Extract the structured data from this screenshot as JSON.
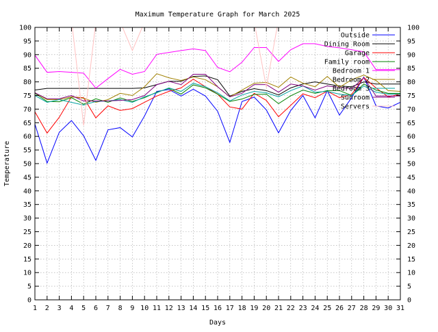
{
  "chart_data": {
    "type": "line",
    "title": "Maximum Temperature Graph for March 2025",
    "xlabel": "Days",
    "ylabel": "Temperature",
    "xlim": [
      1,
      31
    ],
    "ylim": [
      0,
      100
    ],
    "x_ticks": [
      1,
      2,
      3,
      4,
      5,
      6,
      7,
      8,
      9,
      10,
      11,
      12,
      13,
      14,
      15,
      16,
      17,
      18,
      19,
      20,
      21,
      22,
      23,
      24,
      25,
      26,
      27,
      28,
      29,
      30,
      31
    ],
    "y_ticks": [
      0,
      5,
      10,
      15,
      20,
      25,
      30,
      35,
      40,
      45,
      50,
      55,
      60,
      65,
      70,
      75,
      80,
      85,
      90,
      95,
      100
    ],
    "grid": true,
    "legend_position": "top-right",
    "x": [
      1,
      2,
      3,
      4,
      5,
      6,
      7,
      8,
      9,
      10,
      11,
      12,
      13,
      14,
      15,
      16,
      17,
      18,
      19,
      20,
      21,
      22,
      23,
      24,
      25,
      26,
      27,
      28,
      29,
      30,
      31
    ],
    "series": [
      {
        "name": "Outside",
        "color": "#0000ff",
        "values": [
          64.5,
          50.2,
          61.5,
          65.8,
          60.2,
          51.2,
          62.4,
          63.2,
          59.8,
          67.5,
          76.5,
          77.2,
          74.8,
          77.3,
          74.8,
          69.2,
          57.8,
          72.8,
          74.4,
          69.7,
          61.3,
          69.5,
          75.0,
          66.8,
          76.8,
          67.8,
          74.2,
          81.8,
          71.2,
          70.4,
          72.5
        ]
      },
      {
        "name": "Dining Room",
        "color": "#000000",
        "values": [
          77.0,
          77.6,
          77.6,
          77.6,
          77.6,
          77.6,
          77.6,
          77.6,
          77.6,
          77.8,
          79.0,
          80.2,
          80.2,
          82.0,
          82.2,
          80.8,
          74.8,
          76.5,
          77.5,
          76.8,
          75.2,
          77.8,
          79.2,
          80.0,
          79.2,
          78.5,
          78.2,
          80.0,
          79.2,
          79.2,
          79.2
        ]
      },
      {
        "name": "Garage",
        "color": "#ff0000",
        "values": [
          69.0,
          61.2,
          67.0,
          74.5,
          74.2,
          66.8,
          71.2,
          69.5,
          70.2,
          72.5,
          74.8,
          76.5,
          77.8,
          81.0,
          78.2,
          75.5,
          70.8,
          70.0,
          75.8,
          73.2,
          67.2,
          71.4,
          75.6,
          74.2,
          76.6,
          74.2,
          75.4,
          81.6,
          77.8,
          74.5,
          75.5
        ]
      },
      {
        "name": "Family room",
        "color": "#008000",
        "values": [
          75.8,
          72.8,
          72.7,
          74.2,
          71.8,
          73.8,
          72.5,
          74.1,
          72.8,
          74.2,
          76.2,
          77.6,
          75.5,
          78.9,
          77.8,
          75.5,
          72.8,
          73.7,
          75.4,
          75.5,
          72.0,
          74.9,
          77.0,
          75.8,
          76.8,
          76.8,
          75.0,
          79.2,
          77.0,
          75.8,
          75.8
        ]
      },
      {
        "name": "Bedroom 1",
        "color": "#ff00ff",
        "values": [
          89.8,
          83.5,
          83.8,
          83.5,
          83.2,
          77.7,
          81.2,
          84.6,
          82.8,
          83.8,
          90.1,
          90.8,
          91.5,
          92.1,
          91.5,
          85.3,
          83.7,
          87.2,
          92.6,
          92.6,
          87.5,
          91.8,
          94.0,
          94.0,
          93.0,
          92.5,
          91.8,
          91.0,
          84.5,
          84.5,
          84.5
        ]
      },
      {
        "name": "Bedroom 2",
        "color": "#a08000",
        "values": [
          76.0,
          73.5,
          73.5,
          74.5,
          74.0,
          72.5,
          73.5,
          75.8,
          75.0,
          78.2,
          83.0,
          81.5,
          80.5,
          81.8,
          80.8,
          78.2,
          74.5,
          77.0,
          79.5,
          79.8,
          78.0,
          81.8,
          79.5,
          78.2,
          82.0,
          78.0,
          80.8,
          82.5,
          80.5,
          76.8,
          76.5
        ]
      },
      {
        "name": "Bedroom 3",
        "color": "#00a0a0",
        "values": [
          75.0,
          72.5,
          73.5,
          72.5,
          71.5,
          72.8,
          73.0,
          73.5,
          72.5,
          74.5,
          76.0,
          77.8,
          76.5,
          79.5,
          78.2,
          76.0,
          73.0,
          75.2,
          76.5,
          76.0,
          74.5,
          76.8,
          78.5,
          76.2,
          76.5,
          75.5,
          75.0,
          78.5,
          76.2,
          75.5,
          75.5
        ]
      },
      {
        "name": "Sunroom",
        "color": "#800080",
        "values": [
          76.0,
          73.8,
          73.8,
          75.0,
          73.0,
          73.0,
          73.0,
          73.2,
          73.5,
          75.0,
          79.0,
          80.2,
          79.0,
          82.8,
          82.8,
          78.2,
          74.5,
          75.8,
          79.0,
          79.0,
          76.2,
          79.2,
          78.5,
          77.0,
          78.5,
          78.0,
          77.5,
          81.5,
          74.8,
          74.8,
          74.8
        ]
      },
      {
        "name": "Servers",
        "color": "#ffc0c0",
        "values": [
          102.0,
          102.0,
          102.0,
          103.0,
          64.0,
          102.0,
          102.0,
          102.0,
          91.5,
          102.0,
          102.0,
          102.0,
          102.0,
          102.0,
          102.0,
          102.0,
          102.0,
          102.0,
          102.0,
          78.0,
          103.0,
          102.0,
          102.0,
          102.0,
          102.0,
          102.0,
          102.0,
          102.0,
          102.0,
          102.0,
          102.0
        ]
      }
    ]
  }
}
